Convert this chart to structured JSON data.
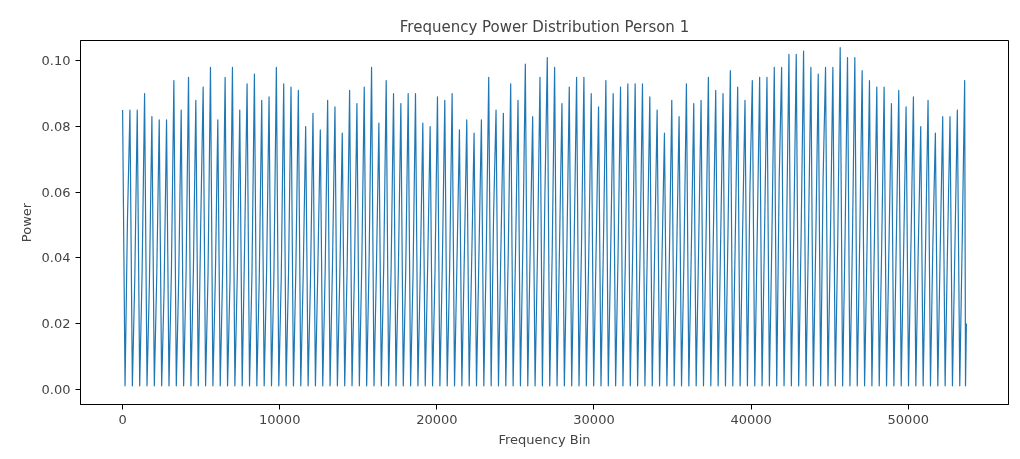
{
  "chart_data": {
    "type": "line",
    "title": "Frequency Power Distribution Person 1",
    "xlabel": "Frequency Bin",
    "ylabel": "Power",
    "xlim": [
      -2680,
      56380
    ],
    "ylim": [
      -0.0047,
      0.1062
    ],
    "xticks": [
      0,
      10000,
      20000,
      30000,
      40000,
      50000
    ],
    "yticks": [
      {
        "value": 0,
        "label": "0.00"
      },
      {
        "value": 0.02,
        "label": "0.02"
      },
      {
        "value": 0.04,
        "label": "0.04"
      },
      {
        "value": 0.06,
        "label": "0.06"
      },
      {
        "value": 0.08,
        "label": "0.08"
      },
      {
        "value": 0.1,
        "label": "0.10"
      }
    ],
    "grid": false,
    "marker": "none",
    "line_style": "solid",
    "series": [
      {
        "color": "#1f77b4",
        "x": [
          0,
          155,
          310,
          466,
          621,
          776,
          932,
          1087,
          1242,
          1398,
          1553,
          1708,
          1864,
          2019,
          2174,
          2330,
          2485,
          2640,
          2796,
          2951,
          3106,
          3262,
          3417,
          3572,
          3728,
          3883,
          4038,
          4194,
          4349,
          4504,
          4660,
          4815,
          4970,
          5126,
          5281,
          5436,
          5592,
          5747,
          5902,
          6058,
          6213,
          6368,
          6524,
          6679,
          6834,
          6990,
          7145,
          7300,
          7456,
          7611,
          7766,
          7922,
          8077,
          8232,
          8388,
          8543,
          8698,
          8854,
          9009,
          9164,
          9320,
          9475,
          9630,
          9786,
          9941,
          10096,
          10252,
          10407,
          10562,
          10718,
          10873,
          11028,
          11184,
          11339,
          11494,
          11650,
          11805,
          11960,
          12116,
          12271,
          12426,
          12582,
          12737,
          12892,
          13048,
          13203,
          13358,
          13514,
          13669,
          13824,
          13980,
          14135,
          14290,
          14446,
          14601,
          14756,
          14912,
          15067,
          15222,
          15378,
          15533,
          15688,
          15844,
          15999,
          16154,
          16310,
          16465,
          16620,
          16776,
          16931,
          17086,
          17242,
          17397,
          17552,
          17708,
          17863,
          18018,
          18174,
          18329,
          18484,
          18640,
          18795,
          18950,
          19106,
          19261,
          19416,
          19572,
          19727,
          19882,
          20038,
          20193,
          20348,
          20504,
          20659,
          20814,
          20970,
          21125,
          21280,
          21436,
          21591,
          21746,
          21902,
          22057,
          22212,
          22368,
          22523,
          22678,
          22834,
          22989,
          23144,
          23300,
          23455,
          23610,
          23766,
          23921,
          24076,
          24232,
          24387,
          24542,
          24698,
          24853,
          25008,
          25164,
          25319,
          25474,
          25630,
          25785,
          25940,
          26096,
          26251,
          26406,
          26562,
          26717,
          26872,
          27028,
          27183,
          27338,
          27494,
          27649,
          27804,
          27960,
          28115,
          28270,
          28426,
          28581,
          28736,
          28892,
          29047,
          29202,
          29358,
          29513,
          29668,
          29824,
          29979,
          30134,
          30290,
          30445,
          30600,
          30756,
          30911,
          31066,
          31222,
          31377,
          31532,
          31688,
          31843,
          31998,
          32154,
          32309,
          32464,
          32620,
          32775,
          32930,
          33086,
          33241,
          33396,
          33552,
          33707,
          33862,
          34018,
          34173,
          34328,
          34484,
          34639,
          34794,
          34950,
          35105,
          35260,
          35416,
          35571,
          35726,
          35882,
          36037,
          36192,
          36348,
          36503,
          36658,
          36814,
          36969,
          37124,
          37280,
          37435,
          37590,
          37746,
          37901,
          38056,
          38212,
          38367,
          38522,
          38678,
          38833,
          38988,
          39144,
          39299,
          39454,
          39610,
          39765,
          39920,
          40076,
          40231,
          40386,
          40542,
          40697,
          40852,
          41008,
          41163,
          41318,
          41474,
          41629,
          41784,
          41940,
          42095,
          42250,
          42406,
          42561,
          42716,
          42872,
          43027,
          43182,
          43338,
          43493,
          43648,
          43804,
          43959,
          44114,
          44270,
          44425,
          44580,
          44736,
          44891,
          45046,
          45202,
          45357,
          45512,
          45668,
          45823,
          45978,
          46134,
          46289,
          46444,
          46600,
          46755,
          46910,
          47066,
          47221,
          47376,
          47532,
          47687,
          47842,
          47998,
          48153,
          48308,
          48464,
          48619,
          48774,
          48930,
          49085,
          49240,
          49396,
          49551,
          49706,
          49862,
          50017,
          50172,
          50328,
          50483,
          50638,
          50794,
          50949,
          51104,
          51260,
          51415,
          51570,
          51726,
          51881,
          52036,
          52192,
          52347,
          52502,
          52658,
          52813,
          52968,
          53124,
          53279,
          53434,
          53590,
          53645,
          53700
        ],
        "values": [
          0.085,
          0.001,
          0.052,
          0.085,
          0.001,
          0.034,
          0.085,
          0.001,
          0.036,
          0.09,
          0.001,
          0.033,
          0.083,
          0.001,
          0.035,
          0.082,
          0.001,
          0.03,
          0.082,
          0.001,
          0.036,
          0.094,
          0.001,
          0.034,
          0.085,
          0.001,
          0.035,
          0.095,
          0.001,
          0.036,
          0.088,
          0.001,
          0.05,
          0.092,
          0.001,
          0.035,
          0.098,
          0.001,
          0.034,
          0.082,
          0.001,
          0.036,
          0.095,
          0.001,
          0.033,
          0.098,
          0.001,
          0.035,
          0.085,
          0.001,
          0.044,
          0.093,
          0.001,
          0.035,
          0.096,
          0.001,
          0.034,
          0.088,
          0.001,
          0.036,
          0.089,
          0.001,
          0.035,
          0.098,
          0.001,
          0.034,
          0.093,
          0.001,
          0.036,
          0.092,
          0.001,
          0.037,
          0.091,
          0.001,
          0.035,
          0.08,
          0.001,
          0.034,
          0.084,
          0.001,
          0.037,
          0.079,
          0.001,
          0.036,
          0.088,
          0.001,
          0.038,
          0.086,
          0.001,
          0.035,
          0.078,
          0.001,
          0.037,
          0.091,
          0.001,
          0.036,
          0.087,
          0.001,
          0.038,
          0.092,
          0.001,
          0.039,
          0.098,
          0.001,
          0.037,
          0.081,
          0.001,
          0.038,
          0.094,
          0.001,
          0.036,
          0.09,
          0.001,
          0.037,
          0.087,
          0.001,
          0.036,
          0.09,
          0.001,
          0.035,
          0.09,
          0.001,
          0.037,
          0.081,
          0.001,
          0.038,
          0.08,
          0.001,
          0.036,
          0.089,
          0.001,
          0.038,
          0.088,
          0.001,
          0.037,
          0.09,
          0.001,
          0.039,
          0.079,
          0.001,
          0.04,
          0.082,
          0.001,
          0.038,
          0.078,
          0.001,
          0.041,
          0.082,
          0.001,
          0.042,
          0.095,
          0.001,
          0.053,
          0.085,
          0.001,
          0.043,
          0.084,
          0.001,
          0.041,
          0.093,
          0.001,
          0.042,
          0.088,
          0.001,
          0.044,
          0.099,
          0.001,
          0.043,
          0.083,
          0.001,
          0.042,
          0.095,
          0.001,
          0.058,
          0.101,
          0.001,
          0.041,
          0.098,
          0.001,
          0.043,
          0.087,
          0.001,
          0.042,
          0.092,
          0.001,
          0.044,
          0.095,
          0.001,
          0.043,
          0.095,
          0.001,
          0.041,
          0.09,
          0.001,
          0.042,
          0.086,
          0.001,
          0.044,
          0.094,
          0.001,
          0.043,
          0.09,
          0.001,
          0.041,
          0.092,
          0.001,
          0.04,
          0.093,
          0.001,
          0.042,
          0.093,
          0.001,
          0.041,
          0.093,
          0.001,
          0.043,
          0.089,
          0.001,
          0.042,
          0.085,
          0.001,
          0.04,
          0.078,
          0.001,
          0.039,
          0.088,
          0.001,
          0.041,
          0.083,
          0.001,
          0.04,
          0.093,
          0.001,
          0.042,
          0.087,
          0.001,
          0.043,
          0.088,
          0.001,
          0.044,
          0.095,
          0.001,
          0.045,
          0.091,
          0.001,
          0.044,
          0.09,
          0.001,
          0.046,
          0.097,
          0.001,
          0.045,
          0.092,
          0.001,
          0.047,
          0.088,
          0.001,
          0.06,
          0.094,
          0.001,
          0.046,
          0.095,
          0.001,
          0.047,
          0.095,
          0.001,
          0.045,
          0.098,
          0.001,
          0.063,
          0.098,
          0.001,
          0.046,
          0.102,
          0.001,
          0.048,
          0.102,
          0.001,
          0.047,
          0.103,
          0.001,
          0.046,
          0.098,
          0.001,
          0.045,
          0.096,
          0.001,
          0.064,
          0.098,
          0.001,
          0.046,
          0.098,
          0.001,
          0.045,
          0.104,
          0.001,
          0.046,
          0.101,
          0.001,
          0.044,
          0.101,
          0.001,
          0.045,
          0.097,
          0.001,
          0.043,
          0.094,
          0.001,
          0.044,
          0.092,
          0.001,
          0.043,
          0.092,
          0.001,
          0.044,
          0.087,
          0.001,
          0.045,
          0.091,
          0.001,
          0.042,
          0.086,
          0.001,
          0.044,
          0.089,
          0.001,
          0.043,
          0.08,
          0.001,
          0.044,
          0.088,
          0.001,
          0.045,
          0.078,
          0.001,
          0.043,
          0.083,
          0.001,
          0.044,
          0.083,
          0.001,
          0.043,
          0.085,
          0.001,
          0.045,
          0.094,
          0.001,
          0.02
        ]
      }
    ]
  }
}
